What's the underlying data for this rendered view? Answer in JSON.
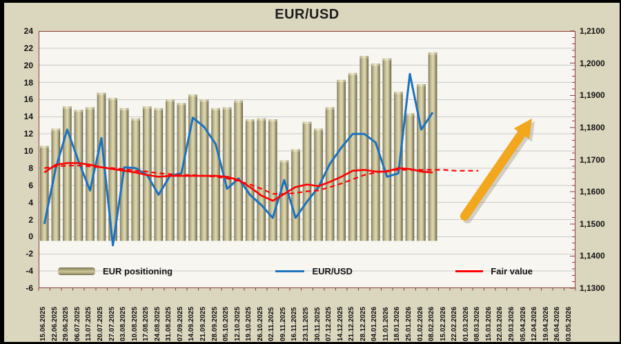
{
  "title": "EUR/USD",
  "legend": [
    {
      "label": "EUR positioning"
    },
    {
      "label": "EUR/USD"
    },
    {
      "label": "Fair value"
    }
  ],
  "axes": {
    "left_ticks": [
      "24",
      "22",
      "20",
      "18",
      "16",
      "14",
      "12",
      "10",
      "8",
      "6",
      "4",
      "2",
      "0",
      "-2",
      "-4",
      "-6"
    ],
    "right_ticks": [
      "1,2100",
      "1,2000",
      "1,1900",
      "1,1800",
      "1,1700",
      "1,1600",
      "1,1500",
      "1,1400",
      "1,1300"
    ],
    "x_labels": [
      "15.06.2025",
      "22.06.2025",
      "29.06.2025",
      "06.07.2025",
      "13.07.2025",
      "20.07.2025",
      "27.07.2025",
      "03.08.2025",
      "10.08.2025",
      "17.08.2025",
      "24.08.2025",
      "31.08.2025",
      "07.09.2025",
      "14.09.2025",
      "21.09.2025",
      "28.09.2025",
      "05.10.2025",
      "12.10.2025",
      "19.10.2025",
      "26.10.2025",
      "02.11.2025",
      "09.11.2025",
      "16.11.2025",
      "23.11.2025",
      "30.11.2025",
      "07.12.2025",
      "14.12.2025",
      "21.12.2025",
      "28.12.2025",
      "04.01.2026",
      "11.01.2026",
      "18.01.2026",
      "25.01.2026",
      "01.02.2026",
      "08.02.2026",
      "15.02.2026",
      "22.02.2026",
      "01.03.2026",
      "08.03.2026",
      "15.03.2026",
      "22.03.2026",
      "29.03.2026",
      "05.04.2026",
      "12.04.2026",
      "19.04.2026",
      "26.04.2026",
      "03.05.2026"
    ]
  },
  "chart_data": {
    "type": "bar",
    "subtype": "combo bar + line, dual axis",
    "title": "EUR/USD",
    "categories": [
      "15.06.2025",
      "22.06.2025",
      "29.06.2025",
      "06.07.2025",
      "13.07.2025",
      "20.07.2025",
      "27.07.2025",
      "03.08.2025",
      "10.08.2025",
      "17.08.2025",
      "24.08.2025",
      "31.08.2025",
      "07.09.2025",
      "14.09.2025",
      "21.09.2025",
      "28.09.2025",
      "05.10.2025",
      "12.10.2025",
      "19.10.2025",
      "26.10.2025",
      "02.11.2025",
      "09.11.2025",
      "16.11.2025",
      "23.11.2025",
      "30.11.2025",
      "07.12.2025",
      "14.12.2025",
      "21.12.2025",
      "28.12.2025",
      "04.01.2026",
      "11.01.2026",
      "18.01.2026",
      "25.01.2026",
      "01.02.2026",
      "08.02.2026",
      "15.02.2026",
      "22.02.2026",
      "01.03.2026",
      "08.03.2026",
      "15.03.2026",
      "22.03.2026",
      "29.03.2026",
      "05.04.2026",
      "12.04.2026",
      "19.04.2026",
      "26.04.2026",
      "03.05.2026"
    ],
    "left_axis": {
      "min": -6,
      "max": 24,
      "step": 2
    },
    "right_axis": {
      "min": 1.13,
      "max": 1.21,
      "step": 0.01,
      "label_format": "comma-decimal"
    },
    "grid": "horizontal, every 2 units",
    "legend_position": "bottom inside plot",
    "series": [
      {
        "name": "EUR positioning",
        "type": "bar",
        "color": "#c3bc93",
        "values": [
          10.6,
          12.6,
          15.2,
          14.8,
          15.1,
          16.8,
          16.2,
          15.0,
          13.8,
          15.2,
          15.0,
          16.0,
          15.6,
          16.6,
          16.0,
          15.0,
          15.1,
          15.9,
          13.7,
          13.8,
          13.7,
          8.9,
          10.2,
          13.4,
          12.6,
          15.1,
          18.3,
          19.1,
          21.1,
          20.2,
          20.8,
          16.9,
          14.4,
          17.8,
          21.5
        ]
      },
      {
        "name": "EUR/USD",
        "type": "line",
        "color": "#1b72c0",
        "values": [
          1.5,
          8.0,
          12.5,
          8.8,
          5.4,
          11.5,
          -1.0,
          8.1,
          8.0,
          7.2,
          4.9,
          7.1,
          7.4,
          13.9,
          12.8,
          10.8,
          5.6,
          6.8,
          4.9,
          3.7,
          2.2,
          6.6,
          2.2,
          4.1,
          5.8,
          8.5,
          10.4,
          12.0,
          12.0,
          11.0,
          7.0,
          7.4,
          19.0,
          12.5,
          14.5
        ]
      },
      {
        "name": "Fair value",
        "type": "line",
        "color": "#fe0000",
        "values": [
          7.5,
          8.4,
          8.6,
          8.6,
          8.4,
          8.1,
          7.9,
          7.7,
          7.5,
          7.2,
          7.0,
          7.1,
          7.1,
          7.1,
          7.1,
          7.1,
          7.0,
          6.6,
          5.8,
          4.8,
          4.2,
          5.0,
          5.8,
          6.1,
          5.9,
          6.4,
          7.0,
          7.7,
          7.8,
          7.6,
          7.6,
          8.0,
          7.9,
          7.6,
          7.5
        ]
      },
      {
        "name": "Fair value forecast",
        "type": "line",
        "dash": true,
        "color": "#fe0000",
        "values": [
          8.0,
          8.2,
          8.3,
          8.3,
          8.2,
          8.1,
          8.0,
          7.9,
          7.7,
          7.6,
          7.4,
          7.3,
          7.2,
          7.2,
          7.1,
          7.0,
          6.8,
          6.5,
          6.1,
          5.6,
          5.0,
          5.0,
          5.1,
          5.3,
          5.4,
          5.8,
          6.2,
          6.7,
          7.2,
          7.5,
          7.7,
          7.8,
          7.8,
          7.8,
          7.8,
          7.8,
          7.7,
          7.7,
          7.7
        ]
      }
    ],
    "annotations": [
      {
        "type": "arrow-up-right",
        "color": "#f2a71d",
        "from": {
          "cat": 37.3,
          "value": 2.4
        },
        "to": {
          "cat": 43.2,
          "value": 13.8
        }
      }
    ]
  },
  "colors": {
    "frame": "#000000",
    "background": "#dbd6be",
    "plot_background": "#f7f6f1",
    "gridline": "#c9c9c9",
    "plot_border": "#8b3a3a",
    "bar_light": "#ddd7b1",
    "bar_dark": "#716c52",
    "line_blue": "#1b72c0",
    "line_red": "#fe0000",
    "arrow_orange": "#f2a71d",
    "text": "#111111"
  }
}
